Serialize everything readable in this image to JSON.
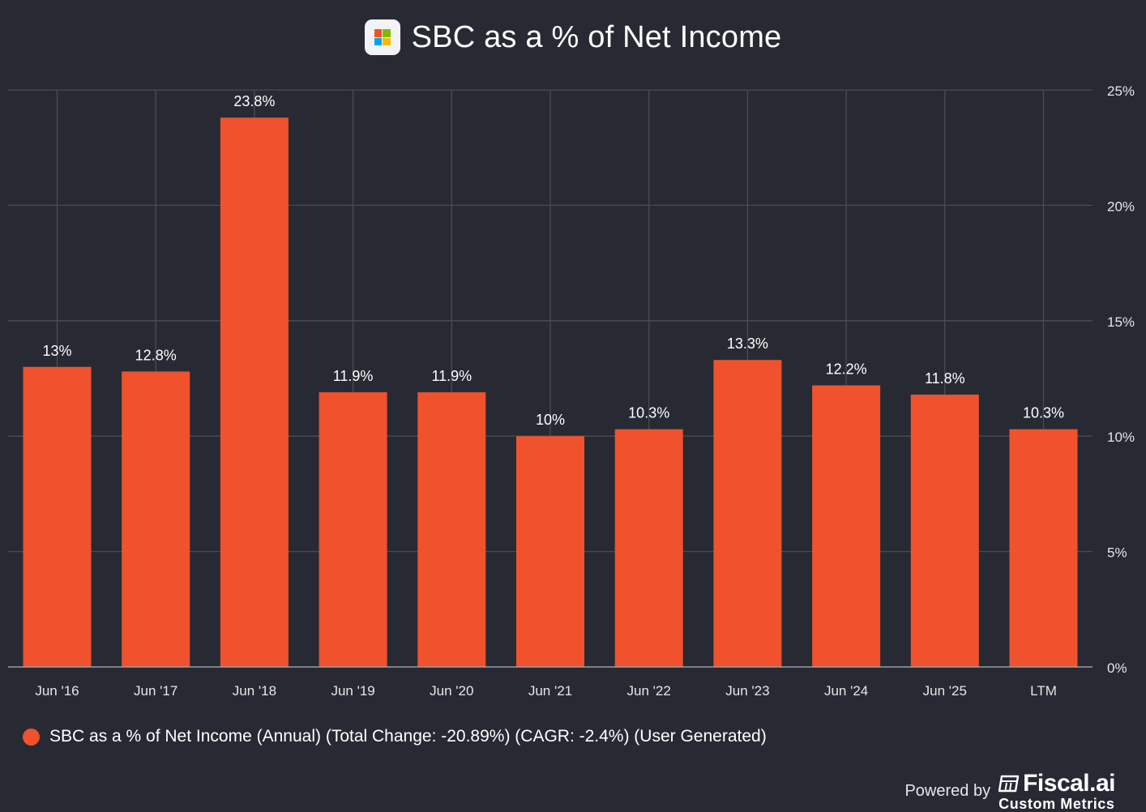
{
  "header": {
    "title": "SBC as a % of Net Income",
    "logo_icon": "microsoft-logo-icon",
    "logo_colors": [
      "#f25022",
      "#7fba00",
      "#00a4ef",
      "#ffb900"
    ]
  },
  "colors": {
    "background": "#282a33",
    "bar": "#f0522d",
    "grid": "#4a4c55",
    "axis_text": "#e6e6e6"
  },
  "chart_data": {
    "type": "bar",
    "title": "SBC as a % of Net Income",
    "xlabel": "",
    "ylabel": "",
    "categories": [
      "Jun '16",
      "Jun '17",
      "Jun '18",
      "Jun '19",
      "Jun '20",
      "Jun '21",
      "Jun '22",
      "Jun '23",
      "Jun '24",
      "Jun '25",
      "LTM"
    ],
    "values": [
      13.0,
      12.8,
      23.8,
      11.9,
      11.9,
      10.0,
      10.3,
      13.3,
      12.2,
      11.8,
      10.3
    ],
    "data_labels": [
      "13%",
      "12.8%",
      "23.8%",
      "11.9%",
      "11.9%",
      "10%",
      "10.3%",
      "13.3%",
      "12.2%",
      "11.8%",
      "10.3%"
    ],
    "ylim": [
      0,
      25
    ],
    "y_ticks": [
      0,
      5,
      10,
      15,
      20,
      25
    ],
    "y_tick_labels": [
      "0%",
      "5%",
      "10%",
      "15%",
      "20%",
      "25%"
    ],
    "y_axis_side": "right",
    "grid": true,
    "legend_position": "bottom-left"
  },
  "legend": {
    "label": "SBC as a % of Net Income (Annual) (Total Change: -20.89%) (CAGR: -2.4%) (User Generated)"
  },
  "footer": {
    "powered_by": "Powered by",
    "brand": "Fiscal.ai",
    "brand_sub": "Custom Metrics",
    "brand_icon": "fiscal-logo-icon"
  }
}
